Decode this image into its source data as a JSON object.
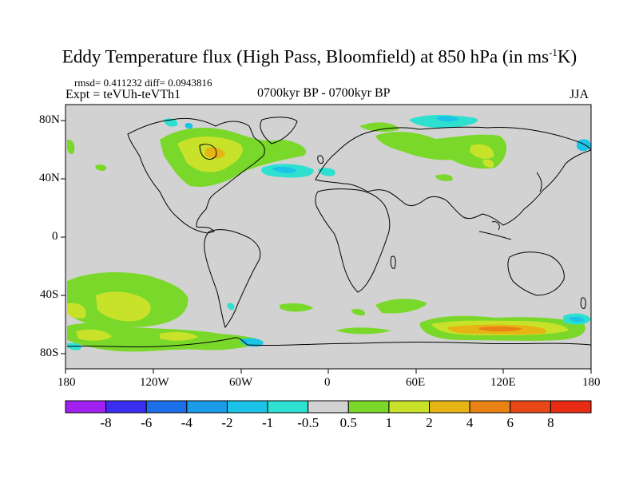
{
  "title": {
    "main": "Eddy Temperature flux (High Pass, Bloomfield) at 850 hPa (in ms",
    "sup": "-1",
    "end": "K)"
  },
  "stats": "rmsd= 0.411232 diff= 0.0943816",
  "experiment": "Expt = teVUh-teVTh1",
  "period": "0700kyr BP - 0700kyr BP",
  "season": "JJA",
  "chart_data": {
    "type": "heatmap",
    "projection": "cylindrical equidistant",
    "field": "Eddy Temperature flux difference",
    "level": "850 hPa",
    "units": "ms-1K",
    "x_range": [
      -180,
      180
    ],
    "y_range": [
      -90,
      90
    ],
    "x_ticks": [
      "180",
      "120W",
      "60W",
      "0",
      "60E",
      "120E",
      "180"
    ],
    "y_ticks": [
      "80N",
      "40N",
      "0",
      "40S",
      "80S"
    ],
    "colorbar": {
      "labels": [
        "-8",
        "-6",
        "-4",
        "-2",
        "-1",
        "-0.5",
        "0.5",
        "1",
        "2",
        "4",
        "6",
        "8"
      ],
      "colors": [
        "#a020f0",
        "#3a2ef0",
        "#1c6fe8",
        "#1c9be6",
        "#1cc3e8",
        "#2de0d0",
        "#d2d2d2",
        "#7ad82a",
        "#c8e22a",
        "#e6b414",
        "#e88214",
        "#e84818",
        "#e82c14"
      ]
    }
  }
}
